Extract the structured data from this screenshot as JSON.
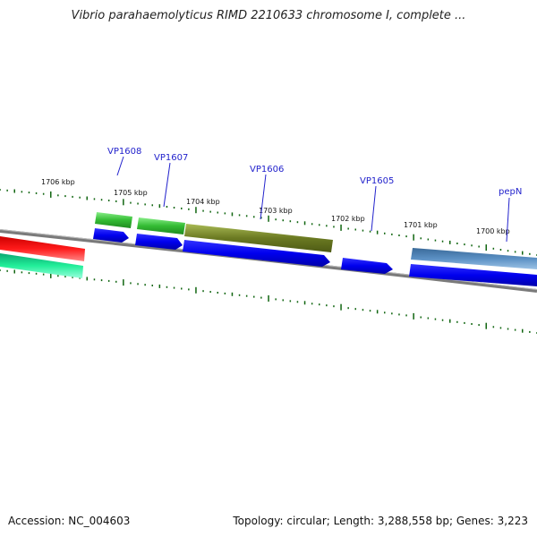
{
  "title": "Vibrio parahaemolyticus RIMD 2210633 chromosome I, complete ...",
  "footer": {
    "accession": "Accession: NC_004603",
    "summary": "Topology: circular; Length: 3,288,558 bp; Genes: 3,223"
  },
  "ticks": [
    "1706 kbp",
    "1705 kbp",
    "1704 kbp",
    "1703 kbp",
    "1702 kbp",
    "1701 kbp",
    "1700 kbp"
  ],
  "gene_labels": [
    "VP1608",
    "VP1607",
    "VP1606",
    "VP1605",
    "pepN"
  ],
  "colors": {
    "backbone": "#808080",
    "cds": "#0000ee",
    "gene_green": "#33bb33",
    "gene_olive": "#667722",
    "gene_steel": "#4f83b5",
    "gene_red": "#ee1111",
    "gene_teal": "#11dd99",
    "tick": "#116611",
    "label": "#2222cc"
  }
}
